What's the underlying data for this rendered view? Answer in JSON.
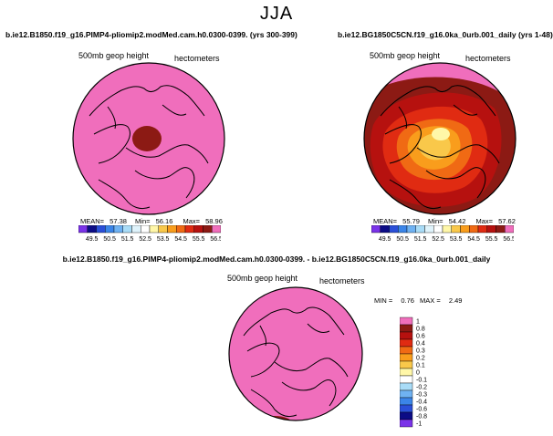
{
  "title": "JJA",
  "panels": [
    {
      "case": "b.ie12.B1850.f19_g16.PIMP4-pliomip2.modMed.cam.h0.0300-0399. (yrs 300-399)",
      "field": "500mb  geop height",
      "units": "hectometers",
      "mean_label": "MEAN=",
      "mean": "57.38",
      "min_label": "Min=",
      "min": "56.16",
      "max_label": "Max=",
      "max": "58.96"
    },
    {
      "case": "b.ie12.BG1850C5CN.f19_g16.0ka_0urb.001_daily (yrs 1-48)",
      "field": "500mb  geop height",
      "units": "hectometers",
      "mean_label": "MEAN=",
      "mean": "55.79",
      "min_label": "Min=",
      "min": "54.42",
      "max_label": "Max=",
      "max": "57.62"
    }
  ],
  "diff": {
    "case": "b.ie12.B1850.f19_g16.PIMP4-pliomip2.modMed.cam.h0.0300-0399. - b.ie12.BG1850C5CN.f19_g16.0ka_0urb.001_daily",
    "field": "500mb  geop height",
    "units": "hectometers",
    "min_label": "MIN =",
    "min": "0.76",
    "max_label": "MAX =",
    "max": "2.49"
  },
  "colorbar": {
    "labels": [
      "49.5",
      "50.5",
      "51.5",
      "52.5",
      "53.5",
      "54.5",
      "55.5",
      "56.5"
    ],
    "colors": [
      "#7a33e8",
      "#0c0c86",
      "#2a4fd8",
      "#3b85e8",
      "#6fb2f2",
      "#a9dcf7",
      "#dff3fb",
      "#ffffff",
      "#fff7a8",
      "#f9c84a",
      "#f99d1c",
      "#f06a14",
      "#e02b12",
      "#b6110f",
      "#8c1a14",
      "#f06ebc"
    ]
  },
  "diff_colorbar": {
    "labels": [
      "1",
      "0.8",
      "0.6",
      "0.4",
      "0.3",
      "0.2",
      "0.1",
      "0",
      "-0.1",
      "-0.2",
      "-0.3",
      "-0.4",
      "-0.6",
      "-0.8",
      "-1"
    ],
    "colors": [
      "#f06ebc",
      "#8c1a14",
      "#b6110f",
      "#e02b12",
      "#f06a14",
      "#f99d1c",
      "#f9c84a",
      "#fff7a8",
      "#ffffff",
      "#a9dcf7",
      "#6fb2f2",
      "#3b85e8",
      "#2a4fd8",
      "#0c0c86",
      "#7a33e8"
    ]
  }
}
